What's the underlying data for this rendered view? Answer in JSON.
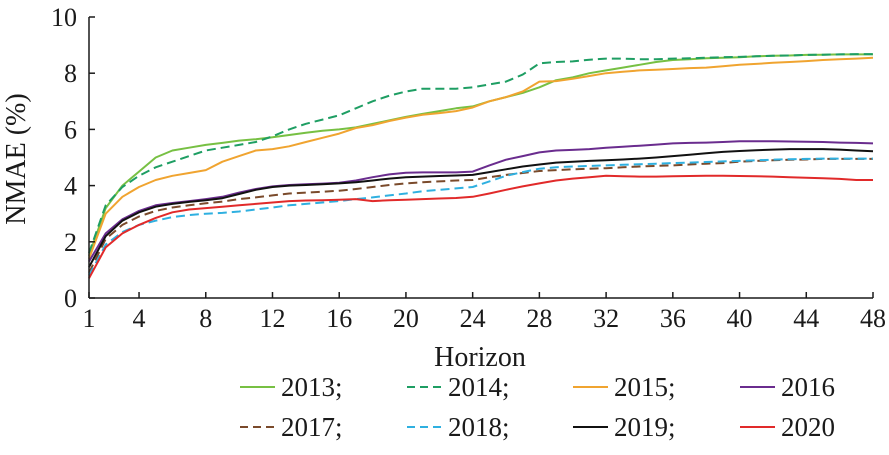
{
  "chart_data": {
    "type": "line",
    "title": "",
    "xlabel": "Horizon",
    "ylabel": "NMAE (%)",
    "xlim": [
      1,
      48
    ],
    "ylim": [
      0,
      10
    ],
    "xticks": [
      1,
      4,
      8,
      12,
      16,
      20,
      24,
      28,
      32,
      36,
      40,
      44,
      48
    ],
    "xtick_labels": [
      "1",
      "4",
      "8",
      "12",
      "16",
      "20",
      "24",
      "28",
      "32",
      "36",
      "40",
      "44",
      "48"
    ],
    "yticks": [
      0,
      2,
      4,
      6,
      8,
      10
    ],
    "ytick_labels": [
      "0",
      "2",
      "4",
      "6",
      "8",
      "10"
    ],
    "grid": false,
    "legend_position": "bottom",
    "x": [
      1,
      2,
      3,
      4,
      5,
      6,
      7,
      8,
      9,
      10,
      11,
      12,
      13,
      14,
      15,
      16,
      17,
      18,
      19,
      20,
      21,
      22,
      23,
      24,
      25,
      26,
      27,
      28,
      29,
      30,
      31,
      32,
      33,
      34,
      35,
      36,
      37,
      38,
      39,
      40,
      41,
      42,
      43,
      44,
      45,
      46,
      47,
      48
    ],
    "series": [
      {
        "name": "2013",
        "legend_label": "2013;",
        "color": "#77c043",
        "dash": "solid",
        "values": [
          1.5,
          3.2,
          4.0,
          4.5,
          5.0,
          5.25,
          5.35,
          5.45,
          5.52,
          5.6,
          5.65,
          5.72,
          5.8,
          5.88,
          5.95,
          6.0,
          6.07,
          6.2,
          6.32,
          6.45,
          6.55,
          6.65,
          6.75,
          6.82,
          7.0,
          7.15,
          7.3,
          7.5,
          7.75,
          7.85,
          8.0,
          8.1,
          8.2,
          8.3,
          8.4,
          8.47,
          8.5,
          8.53,
          8.55,
          8.57,
          8.6,
          8.62,
          8.63,
          8.65,
          8.66,
          8.67,
          8.67,
          8.67
        ]
      },
      {
        "name": "2014",
        "legend_label": "2014;",
        "color": "#1e9e63",
        "dash": "dashed",
        "values": [
          1.6,
          3.3,
          3.95,
          4.35,
          4.65,
          4.85,
          5.05,
          5.25,
          5.35,
          5.45,
          5.55,
          5.75,
          6.0,
          6.2,
          6.35,
          6.5,
          6.75,
          7.0,
          7.2,
          7.35,
          7.45,
          7.45,
          7.45,
          7.5,
          7.6,
          7.7,
          7.95,
          8.35,
          8.4,
          8.42,
          8.48,
          8.52,
          8.52,
          8.5,
          8.5,
          8.52,
          8.53,
          8.55,
          8.57,
          8.58,
          8.6,
          8.62,
          8.63,
          8.65,
          8.66,
          8.67,
          8.68,
          8.68
        ]
      },
      {
        "name": "2015",
        "legend_label": "2015;",
        "color": "#f0a430",
        "dash": "solid",
        "values": [
          1.4,
          3.0,
          3.6,
          3.95,
          4.2,
          4.35,
          4.45,
          4.55,
          4.85,
          5.05,
          5.25,
          5.3,
          5.4,
          5.55,
          5.7,
          5.85,
          6.05,
          6.15,
          6.3,
          6.42,
          6.52,
          6.58,
          6.65,
          6.78,
          7.0,
          7.15,
          7.35,
          7.7,
          7.72,
          7.8,
          7.9,
          8.0,
          8.05,
          8.1,
          8.12,
          8.15,
          8.18,
          8.2,
          8.25,
          8.3,
          8.33,
          8.37,
          8.4,
          8.43,
          8.47,
          8.5,
          8.52,
          8.55
        ]
      },
      {
        "name": "2016",
        "legend_label": "2016",
        "color": "#6a2c8e",
        "dash": "solid",
        "values": [
          1.3,
          2.3,
          2.8,
          3.1,
          3.3,
          3.38,
          3.45,
          3.52,
          3.6,
          3.75,
          3.88,
          3.97,
          4.02,
          4.05,
          4.07,
          4.1,
          4.18,
          4.3,
          4.4,
          4.46,
          4.47,
          4.47,
          4.47,
          4.5,
          4.72,
          4.92,
          5.05,
          5.18,
          5.25,
          5.27,
          5.3,
          5.35,
          5.38,
          5.42,
          5.46,
          5.5,
          5.52,
          5.53,
          5.55,
          5.58,
          5.58,
          5.58,
          5.57,
          5.56,
          5.55,
          5.53,
          5.52,
          5.5
        ]
      },
      {
        "name": "2017",
        "legend_label": "2017;",
        "color": "#7a4a2b",
        "dash": "dashed",
        "values": [
          0.9,
          2.1,
          2.6,
          2.9,
          3.1,
          3.22,
          3.3,
          3.37,
          3.43,
          3.52,
          3.58,
          3.65,
          3.72,
          3.75,
          3.78,
          3.82,
          3.88,
          3.95,
          4.02,
          4.08,
          4.12,
          4.15,
          4.18,
          4.2,
          4.3,
          4.38,
          4.45,
          4.52,
          4.55,
          4.58,
          4.6,
          4.62,
          4.65,
          4.68,
          4.7,
          4.72,
          4.75,
          4.78,
          4.8,
          4.85,
          4.88,
          4.9,
          4.92,
          4.93,
          4.95,
          4.95,
          4.95,
          4.95
        ]
      },
      {
        "name": "2018",
        "legend_label": "2018;",
        "color": "#2fb0e0",
        "dash": "dashed",
        "values": [
          0.8,
          1.9,
          2.35,
          2.6,
          2.75,
          2.88,
          2.95,
          3.0,
          3.03,
          3.08,
          3.15,
          3.22,
          3.3,
          3.35,
          3.4,
          3.45,
          3.52,
          3.58,
          3.65,
          3.72,
          3.8,
          3.85,
          3.9,
          3.95,
          4.15,
          4.35,
          4.48,
          4.6,
          4.65,
          4.68,
          4.7,
          4.72,
          4.74,
          4.76,
          4.78,
          4.8,
          4.82,
          4.84,
          4.86,
          4.88,
          4.9,
          4.92,
          4.94,
          4.95,
          4.96,
          4.96,
          4.96,
          4.96
        ]
      },
      {
        "name": "2019",
        "legend_label": "2019;",
        "color": "#111111",
        "dash": "solid",
        "values": [
          1.1,
          2.2,
          2.75,
          3.05,
          3.25,
          3.35,
          3.42,
          3.48,
          3.55,
          3.7,
          3.85,
          3.95,
          4.0,
          4.02,
          4.05,
          4.08,
          4.12,
          4.18,
          4.25,
          4.3,
          4.32,
          4.34,
          4.36,
          4.38,
          4.48,
          4.58,
          4.68,
          4.75,
          4.82,
          4.85,
          4.88,
          4.9,
          4.93,
          4.96,
          5.0,
          5.05,
          5.1,
          5.15,
          5.2,
          5.23,
          5.26,
          5.28,
          5.3,
          5.3,
          5.3,
          5.28,
          5.25,
          5.22
        ]
      },
      {
        "name": "2020",
        "legend_label": "2020",
        "color": "#e12a2a",
        "dash": "solid",
        "values": [
          0.7,
          1.8,
          2.3,
          2.6,
          2.85,
          3.05,
          3.15,
          3.2,
          3.25,
          3.3,
          3.35,
          3.4,
          3.45,
          3.47,
          3.48,
          3.5,
          3.52,
          3.45,
          3.48,
          3.5,
          3.52,
          3.54,
          3.56,
          3.6,
          3.72,
          3.85,
          3.97,
          4.08,
          4.18,
          4.25,
          4.3,
          4.35,
          4.33,
          4.32,
          4.32,
          4.33,
          4.34,
          4.35,
          4.35,
          4.34,
          4.33,
          4.32,
          4.3,
          4.28,
          4.26,
          4.24,
          4.2,
          4.2
        ]
      }
    ]
  }
}
